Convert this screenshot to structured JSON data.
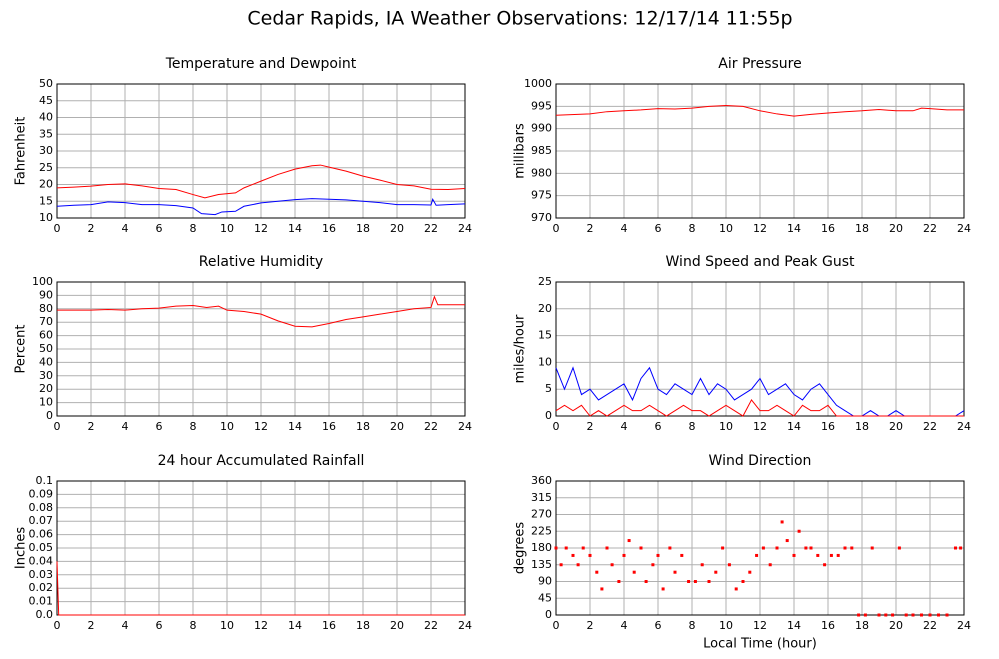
{
  "title": "Cedar Rapids, IA Weather Observations: 12/17/14 11:55p",
  "chart_data": [
    {
      "type": "line",
      "title": "Temperature and Dewpoint",
      "ylabel": "Fahrenheit",
      "xlim": [
        0,
        24
      ],
      "xticks": [
        0,
        2,
        4,
        6,
        8,
        10,
        12,
        14,
        16,
        18,
        20,
        22,
        24
      ],
      "ylim": [
        10,
        50
      ],
      "yticks": [
        10,
        15,
        20,
        25,
        30,
        35,
        40,
        45,
        50
      ],
      "grid": true,
      "series": [
        {
          "color": "#ff0000",
          "x": [
            0,
            1,
            2,
            3,
            4,
            5,
            6,
            7,
            8,
            8.7,
            9.5,
            10.5,
            11,
            12,
            13,
            14,
            15,
            15.5,
            16,
            17,
            18,
            19,
            20,
            21,
            22,
            23,
            24
          ],
          "values": [
            19,
            19.2,
            19.5,
            20,
            20.2,
            19.6,
            18.8,
            18.5,
            17,
            16,
            17,
            17.5,
            19,
            21,
            23,
            24.6,
            25.6,
            25.8,
            25.2,
            24,
            22.5,
            21.3,
            20,
            19.6,
            18.6,
            18.5,
            18.8
          ]
        },
        {
          "color": "#0000ff",
          "x": [
            0,
            1,
            2,
            3,
            4,
            5,
            6,
            7,
            8,
            8.5,
            9.3,
            9.7,
            10.5,
            11,
            12,
            13,
            14,
            15,
            16,
            17,
            18,
            19,
            20,
            21,
            22,
            22.1,
            22.3,
            23,
            24
          ],
          "values": [
            13.5,
            13.8,
            14,
            14.8,
            14.6,
            14,
            14,
            13.7,
            13,
            11.3,
            11,
            11.8,
            12,
            13.5,
            14.5,
            15,
            15.5,
            15.8,
            15.6,
            15.4,
            15,
            14.6,
            14,
            14,
            13.9,
            15.6,
            13.8,
            14,
            14.2
          ]
        }
      ]
    },
    {
      "type": "line",
      "title": "Air Pressure",
      "ylabel": "millibars",
      "xlim": [
        0,
        24
      ],
      "xticks": [
        0,
        2,
        4,
        6,
        8,
        10,
        12,
        14,
        16,
        18,
        20,
        22,
        24
      ],
      "ylim": [
        970,
        1000
      ],
      "yticks": [
        970,
        975,
        980,
        985,
        990,
        995,
        1000
      ],
      "grid": true,
      "series": [
        {
          "color": "#ff0000",
          "x": [
            0,
            2,
            3,
            4,
            5,
            6,
            7,
            8,
            9,
            10,
            11,
            12,
            13,
            14,
            15,
            16,
            17,
            18,
            19,
            20,
            21,
            21.5,
            22,
            23,
            24
          ],
          "values": [
            993,
            993.3,
            993.8,
            994,
            994.2,
            994.5,
            994.4,
            994.6,
            995,
            995.2,
            995,
            994,
            993.3,
            992.8,
            993.2,
            993.5,
            993.8,
            994,
            994.3,
            994,
            994,
            994.6,
            994.5,
            994.2,
            994.2
          ]
        }
      ]
    },
    {
      "type": "line",
      "title": "Relative Humidity",
      "ylabel": "Percent",
      "xlim": [
        0,
        24
      ],
      "xticks": [
        0,
        2,
        4,
        6,
        8,
        10,
        12,
        14,
        16,
        18,
        20,
        22,
        24
      ],
      "ylim": [
        0,
        100
      ],
      "yticks": [
        0,
        10,
        20,
        30,
        40,
        50,
        60,
        70,
        80,
        90,
        100
      ],
      "grid": true,
      "series": [
        {
          "color": "#ff0000",
          "x": [
            0,
            2,
            3,
            4,
            5,
            6,
            7,
            8,
            8.8,
            9.5,
            10,
            11,
            12,
            13,
            14,
            15,
            16,
            17,
            18,
            19,
            20,
            21,
            22,
            22.2,
            22.4,
            23,
            24
          ],
          "values": [
            79,
            79,
            79.5,
            79,
            80,
            80.5,
            82,
            82.5,
            81,
            82,
            79,
            78,
            76,
            71,
            67,
            66.5,
            69,
            72,
            74,
            76,
            78,
            80,
            81,
            89,
            83,
            83,
            83
          ]
        }
      ]
    },
    {
      "type": "line",
      "title": "Wind Speed and Peak Gust",
      "ylabel": "miles/hour",
      "xlim": [
        0,
        24
      ],
      "xticks": [
        0,
        2,
        4,
        6,
        8,
        10,
        12,
        14,
        16,
        18,
        20,
        22,
        24
      ],
      "ylim": [
        0,
        25
      ],
      "yticks": [
        0,
        5,
        10,
        15,
        20,
        25
      ],
      "grid": true,
      "series": [
        {
          "color": "#0000ff",
          "x": [
            0,
            0.5,
            1,
            1.5,
            2,
            2.5,
            3,
            3.5,
            4,
            4.5,
            5,
            5.5,
            6,
            6.5,
            7,
            7.5,
            8,
            8.5,
            9,
            9.5,
            10,
            10.5,
            11,
            11.5,
            12,
            12.5,
            13,
            13.5,
            14,
            14.5,
            15,
            15.5,
            16,
            16.5,
            17,
            17.5,
            18,
            18.5,
            19,
            19.5,
            20,
            20.5,
            21,
            21.5,
            22,
            22.5,
            23,
            23.5,
            24
          ],
          "values": [
            9,
            5,
            9,
            4,
            5,
            3,
            4,
            5,
            6,
            3,
            7,
            9,
            5,
            4,
            6,
            5,
            4,
            7,
            4,
            6,
            5,
            3,
            4,
            5,
            7,
            4,
            5,
            6,
            4,
            3,
            5,
            6,
            4,
            2,
            1,
            0,
            0,
            1,
            0,
            0,
            1,
            0,
            0,
            0,
            0,
            0,
            0,
            0,
            1
          ]
        },
        {
          "color": "#ff0000",
          "x": [
            0,
            0.5,
            1,
            1.5,
            2,
            2.5,
            3,
            3.5,
            4,
            4.5,
            5,
            5.5,
            6,
            6.5,
            7,
            7.5,
            8,
            8.5,
            9,
            9.5,
            10,
            10.5,
            11,
            11.5,
            12,
            12.5,
            13,
            13.5,
            14,
            14.5,
            15,
            15.5,
            16,
            16.5,
            17,
            17.5,
            18,
            18.5,
            19,
            19.5,
            20,
            20.5,
            21,
            21.5,
            22,
            22.5,
            23,
            23.5,
            24
          ],
          "values": [
            1,
            2,
            1,
            2,
            0,
            1,
            0,
            1,
            2,
            1,
            1,
            2,
            1,
            0,
            1,
            2,
            1,
            1,
            0,
            1,
            2,
            1,
            0,
            3,
            1,
            1,
            2,
            1,
            0,
            2,
            1,
            1,
            2,
            0,
            0,
            0,
            0,
            0,
            0,
            0,
            0,
            0,
            0,
            0,
            0,
            0,
            0,
            0,
            0
          ]
        }
      ]
    },
    {
      "type": "line",
      "title": "24 hour Accumulated Rainfall",
      "ylabel": "Inches",
      "xlim": [
        0,
        24
      ],
      "xticks": [
        0,
        2,
        4,
        6,
        8,
        10,
        12,
        14,
        16,
        18,
        20,
        22,
        24
      ],
      "ylim": [
        0,
        0.1
      ],
      "yticks": [
        {
          "value": 0,
          "label": "0.0"
        },
        0.01,
        0.02,
        0.03,
        0.04,
        0.05,
        0.06,
        0.07,
        0.08,
        0.09,
        0.1
      ],
      "grid": true,
      "series": [
        {
          "color": "#ff0000",
          "x": [
            0,
            0.1,
            24
          ],
          "values": [
            0.04,
            0,
            0
          ]
        }
      ]
    },
    {
      "type": "scatter",
      "title": "Wind Direction",
      "ylabel": "degrees",
      "xlabel": "Local Time (hour)",
      "xlim": [
        0,
        24
      ],
      "xticks": [
        0,
        2,
        4,
        6,
        8,
        10,
        12,
        14,
        16,
        18,
        20,
        22,
        24
      ],
      "ylim": [
        0,
        360
      ],
      "yticks": [
        0,
        45,
        90,
        135,
        180,
        225,
        270,
        315,
        360
      ],
      "grid": true,
      "series": [
        {
          "color": "#ff0000",
          "x": [
            0,
            0.3,
            0.6,
            1,
            1.3,
            1.6,
            2,
            2.4,
            2.7,
            3,
            3.3,
            3.7,
            4,
            4.3,
            4.6,
            5,
            5.3,
            5.7,
            6,
            6.3,
            6.7,
            7,
            7.4,
            7.8,
            8.2,
            8.6,
            9,
            9.4,
            9.8,
            10.2,
            10.6,
            11,
            11.4,
            11.8,
            12.2,
            12.6,
            13,
            13.3,
            13.6,
            14,
            14.3,
            14.7,
            15,
            15.4,
            15.8,
            16.2,
            16.6,
            17,
            17.4,
            17.8,
            18.2,
            18.6,
            19,
            19.4,
            19.8,
            20.2,
            20.6,
            21,
            21.5,
            22,
            22.5,
            23,
            23.5,
            23.8
          ],
          "values": [
            180,
            135,
            180,
            160,
            135,
            180,
            160,
            115,
            70,
            180,
            135,
            90,
            160,
            200,
            115,
            180,
            90,
            135,
            160,
            70,
            180,
            115,
            160,
            90,
            90,
            135,
            90,
            115,
            180,
            135,
            70,
            90,
            115,
            160,
            180,
            135,
            180,
            250,
            200,
            160,
            225,
            180,
            180,
            160,
            135,
            160,
            160,
            180,
            180,
            0,
            0,
            180,
            0,
            0,
            0,
            180,
            0,
            0,
            0,
            0,
            0,
            0,
            180,
            180
          ]
        }
      ]
    }
  ]
}
